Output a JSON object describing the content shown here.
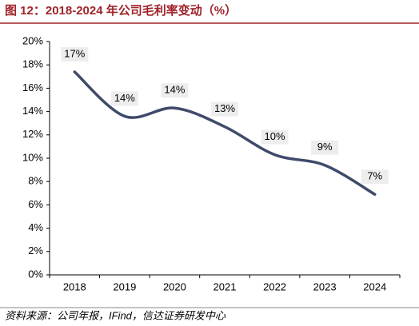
{
  "chart_data": {
    "type": "line",
    "title": "图 12：2018-2024 年公司毛利率变动（%）",
    "source": "资料来源：公司年报，IFind，信达证券研发中心",
    "categories": [
      "2018",
      "2019",
      "2020",
      "2021",
      "2022",
      "2023",
      "2024"
    ],
    "series": [
      {
        "name": "毛利率",
        "color": "#404a6b",
        "values": [
          17.4,
          13.6,
          14.3,
          12.7,
          10.3,
          9.4,
          6.9
        ],
        "value_labels": [
          "17%",
          "14%",
          "14%",
          "13%",
          "10%",
          "9%",
          "7%"
        ]
      }
    ],
    "ylim": [
      0,
      20
    ],
    "yticks": [
      {
        "value": 0,
        "label": "0%"
      },
      {
        "value": 2,
        "label": "2%"
      },
      {
        "value": 4,
        "label": "4%"
      },
      {
        "value": 6,
        "label": "6%"
      },
      {
        "value": 8,
        "label": "8%"
      },
      {
        "value": 10,
        "label": "10%"
      },
      {
        "value": 12,
        "label": "12%"
      },
      {
        "value": 14,
        "label": "14%"
      },
      {
        "value": 16,
        "label": "16%"
      },
      {
        "value": 18,
        "label": "18%"
      },
      {
        "value": 20,
        "label": "20%"
      }
    ],
    "grid": false,
    "smooth": true
  }
}
